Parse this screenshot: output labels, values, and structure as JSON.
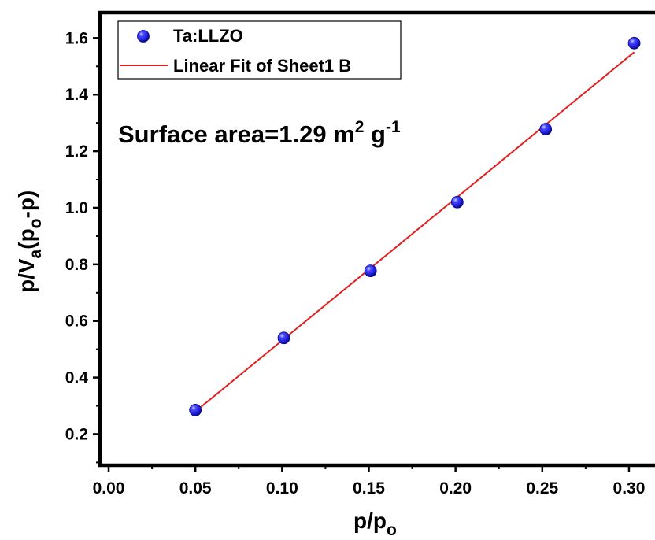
{
  "chart_data": {
    "type": "scatter",
    "xlabel": {
      "base": "p/p",
      "sub": "o"
    },
    "ylabel": {
      "p1": "p/V",
      "sub1": "a",
      "p2": "(p",
      "sub2": "o",
      "p3": "-p)"
    },
    "xlim": [
      -0.005,
      0.315
    ],
    "ylim": [
      0.09,
      1.69
    ],
    "x_ticks": [
      0.0,
      0.05,
      0.1,
      0.15,
      0.2,
      0.25,
      0.3
    ],
    "x_tick_labels": [
      "0.00",
      "0.05",
      "0.10",
      "0.15",
      "0.20",
      "0.25",
      "0.30"
    ],
    "y_ticks": [
      0.2,
      0.4,
      0.6,
      0.8,
      1.0,
      1.2,
      1.4,
      1.6
    ],
    "y_tick_labels": [
      "0.2",
      "0.4",
      "0.6",
      "0.8",
      "1.0",
      "1.2",
      "1.4",
      "1.6"
    ],
    "series": [
      {
        "name": "Ta:LLZO",
        "kind": "scatter",
        "color": "#1a1aff",
        "x": [
          0.05,
          0.101,
          0.151,
          0.201,
          0.252,
          0.303
        ],
        "y": [
          0.285,
          0.54,
          0.777,
          1.02,
          1.278,
          1.582
        ]
      },
      {
        "name": "Linear Fit of Sheet1 B",
        "kind": "line",
        "color": "#e02020",
        "x": [
          0.05,
          0.303
        ],
        "y": [
          0.28,
          1.55
        ]
      }
    ],
    "annotation": {
      "text": "Surface area=1.29 m",
      "sup1": "2",
      "mid": " g",
      "sup2": "-1"
    },
    "legend_position": "top-left",
    "grid": false
  }
}
